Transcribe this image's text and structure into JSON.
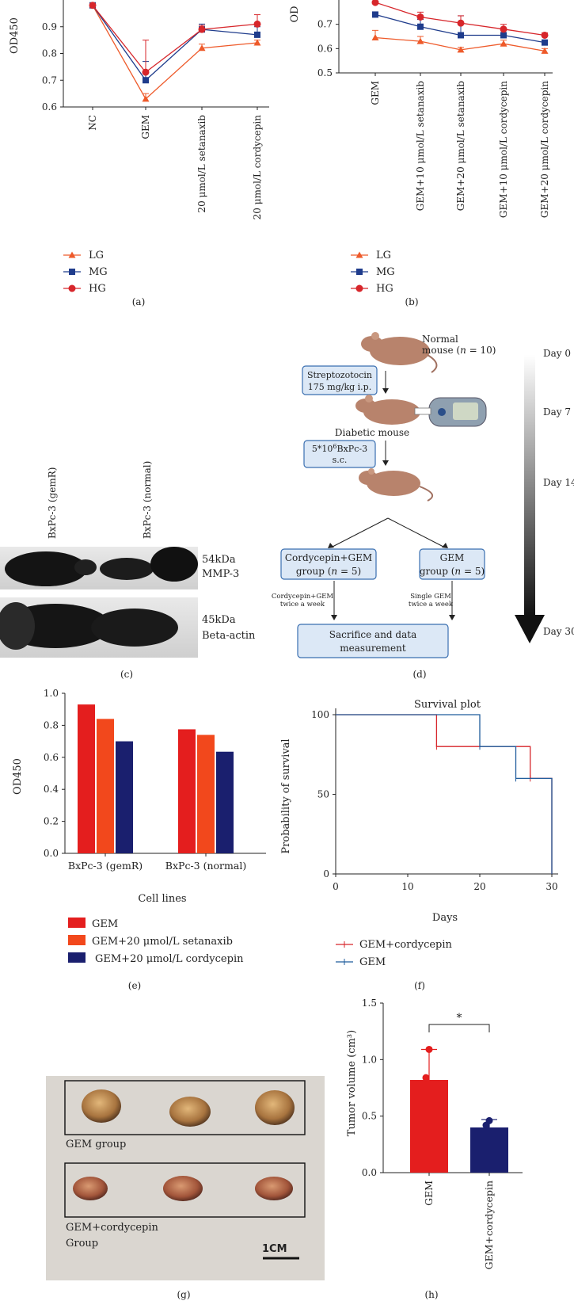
{
  "colors": {
    "lg": "#ee5a2a",
    "mg": "#1f3c8c",
    "hg": "#d7262b",
    "gem_bar": "#e41e1e",
    "setanaxib_bar": "#f2481c",
    "cordycepin_bar": "#1a1f6e",
    "gem_cordycepin_line": "#d7262b",
    "gem_line": "#1f5c9c",
    "box_fill": "#dce8f6",
    "box_stroke": "#3a6fb0"
  },
  "panel_labels": {
    "a": "(a)",
    "b": "(b)",
    "c": "(c)",
    "d": "(d)",
    "e": "(e)",
    "f": "(f)",
    "g": "(g)",
    "h": "(h)"
  },
  "chart_data": [
    {
      "id": "a",
      "type": "line",
      "ylabel": "OD450",
      "ylim": [
        0.6,
        1.0
      ],
      "yticks": [
        "0.6",
        "0.7",
        "0.8",
        "0.9"
      ],
      "categories": [
        "NC",
        "GEM",
        "20 μmol/L setanaxib",
        "20 μmol/L cordycepin"
      ],
      "series": [
        {
          "name": "LG",
          "marker": "triangle",
          "values": [
            0.98,
            0.63,
            0.82,
            0.84
          ],
          "err": [
            0,
            0.02,
            0.015,
            0.01
          ]
        },
        {
          "name": "MG",
          "marker": "square",
          "values": [
            0.98,
            0.7,
            0.89,
            0.87
          ],
          "err": [
            0,
            0.07,
            0.02,
            0.03
          ]
        },
        {
          "name": "HG",
          "marker": "circle",
          "values": [
            0.98,
            0.73,
            0.89,
            0.91
          ],
          "err": [
            0,
            0.12,
            0.015,
            0.035
          ]
        }
      ]
    },
    {
      "id": "b",
      "type": "line",
      "ylabel": "OD",
      "ylim": [
        0.5,
        0.8
      ],
      "yticks": [
        "0.5",
        "0.6",
        "0.7"
      ],
      "categories": [
        "GEM",
        "GEM+10 μmol/L setanaxib",
        "GEM+20 μmol/L setanaxib",
        "GEM+10 μmol/L cordycepin",
        "GEM+20 μmol/L cordycepin"
      ],
      "series": [
        {
          "name": "LG",
          "marker": "triangle",
          "values": [
            0.645,
            0.63,
            0.595,
            0.62,
            0.59
          ],
          "err": [
            0.03,
            0.02,
            0.01,
            0.015,
            0.01
          ]
        },
        {
          "name": "MG",
          "marker": "square",
          "values": [
            0.74,
            0.69,
            0.655,
            0.655,
            0.625
          ],
          "err": [
            0,
            0.03,
            0.08,
            0.02,
            0.01
          ]
        },
        {
          "name": "HG",
          "marker": "circle",
          "values": [
            0.79,
            0.73,
            0.705,
            0.68,
            0.655
          ],
          "err": [
            0,
            0.02,
            0.03,
            0.02,
            0.01
          ]
        }
      ]
    },
    {
      "id": "e",
      "type": "bar",
      "ylabel": "OD450",
      "xlabel": "Cell lines",
      "ylim": [
        0.0,
        1.0
      ],
      "yticks": [
        "0.0",
        "0.2",
        "0.4",
        "0.6",
        "0.8",
        "1.0"
      ],
      "categories": [
        "BxPc-3 (gemR)",
        "BxPc-3 (normal)"
      ],
      "series": [
        {
          "name": "GEM",
          "values": [
            0.93,
            0.775
          ]
        },
        {
          "name": "GEM+20 μmol/L setanaxib",
          "values": [
            0.84,
            0.74
          ]
        },
        {
          "name": "GEM+20 μmol/L cordycepin",
          "values": [
            0.7,
            0.635
          ]
        }
      ]
    },
    {
      "id": "f",
      "type": "line",
      "title": "Survival plot",
      "xlabel": "Days",
      "ylabel": "Probability of survival",
      "xlim": [
        0,
        30
      ],
      "ylim": [
        0,
        100
      ],
      "xticks": [
        "0",
        "10",
        "20",
        "30"
      ],
      "yticks": [
        "0",
        "50",
        "100"
      ],
      "series": [
        {
          "name": "GEM+cordycepin",
          "steps": [
            [
              0,
              100
            ],
            [
              14,
              100
            ],
            [
              14,
              80
            ],
            [
              27,
              80
            ],
            [
              27,
              60
            ],
            [
              30,
              60
            ],
            [
              30,
              0
            ]
          ]
        },
        {
          "name": "GEM",
          "steps": [
            [
              0,
              100
            ],
            [
              20,
              100
            ],
            [
              20,
              80
            ],
            [
              25,
              80
            ],
            [
              25,
              60
            ],
            [
              30,
              60
            ],
            [
              30,
              0
            ]
          ]
        }
      ]
    },
    {
      "id": "h",
      "type": "bar",
      "ylabel": "Tumor volume (cm³)",
      "ylim": [
        0.0,
        1.5
      ],
      "yticks": [
        "0.0",
        "0.5",
        "1.0",
        "1.5"
      ],
      "categories": [
        "GEM",
        "GEM+cordycepin"
      ],
      "values": [
        0.82,
        0.4
      ],
      "err": [
        0.27,
        0.07
      ],
      "points": [
        [
          1.09,
          0.84
        ],
        [
          0.46,
          0.42
        ]
      ],
      "significance": "*"
    }
  ],
  "blot": {
    "lanes": [
      "BxPc-3 (gemR)",
      "BxPc-3 (normal)"
    ],
    "bands": [
      {
        "size": "54kDa",
        "name": "MMP-3"
      },
      {
        "size": "45kDa",
        "name": "Beta-actin"
      }
    ]
  },
  "schematic": {
    "normal_mouse_1": "Normal",
    "normal_mouse_2": "mouse (",
    "n_var": "n",
    "n_val": " = 10)",
    "stz_line1": "Streptozotocin",
    "stz_line2": "175 mg/kg i.p.",
    "diabetic": "Diabetic mouse",
    "inject_base": "5*10",
    "inject_exp": "6",
    "inject_rest": "BxPc-3",
    "inject_line2": "s.c.",
    "group1_line1": "Cordycepin+GEM",
    "group1_line2a": "group (",
    "group1_n_val": " = 5)",
    "group2_line1": "GEM",
    "group2_line2a": "group (",
    "group2_n_val": " = 5)",
    "note1_line1": "Cordycepin+GEM",
    "note1_line2": "twice a week",
    "note2_line1": "Single GEM",
    "note2_line2": "twice a week",
    "final_line1": "Sacrifice and data",
    "final_line2": "measurement",
    "days": [
      "Day 0",
      "Day 7",
      "Day 14",
      "Day 30"
    ]
  },
  "photo": {
    "label1": "GEM group",
    "label2a": "GEM+cordycepin",
    "label2b": "Group",
    "scale": "1CM"
  }
}
